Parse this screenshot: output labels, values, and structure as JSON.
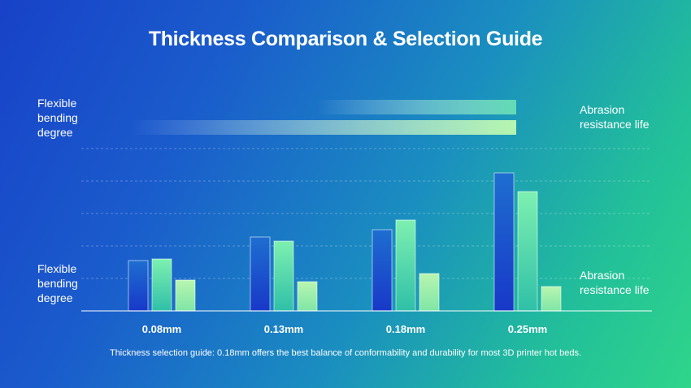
{
  "chart_data": {
    "type": "bar",
    "title": "Thickness Comparison & Selection Guide",
    "categories": [
      "0.08mm",
      "0.13mm",
      "0.18mm",
      "0.25mm"
    ],
    "series": [
      {
        "values": [
          62,
          91,
          100,
          170
        ],
        "color": "#1c55d0"
      },
      {
        "values": [
          64,
          86,
          112,
          147
        ],
        "color": "#5fe0a0"
      },
      {
        "values": [
          38,
          36,
          46,
          30
        ],
        "color": "#a9f0a6"
      }
    ],
    "ylim": [
      0,
      200
    ],
    "grid": true,
    "top_labels": {
      "left": "Flexible bending degree",
      "right": "Abrasion resistance life"
    },
    "bottom_labels": {
      "left": "Flexible bending degree",
      "right": "Abrasion resistance life"
    },
    "caption": "Thickness selection guide: 0.18mm offers the best balance of conformability and durability for most 3D printer hot beds."
  }
}
